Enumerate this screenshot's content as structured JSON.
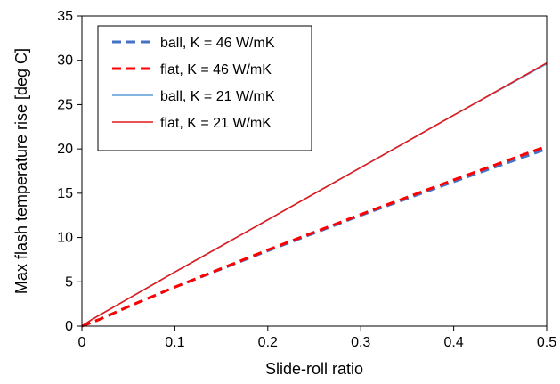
{
  "chart_data": {
    "type": "line",
    "xlabel": "Slide-roll ratio",
    "ylabel": "Max flash temperature rise [deg C]",
    "xlim": [
      0,
      0.5
    ],
    "ylim": [
      0,
      35
    ],
    "xticks": [
      "0",
      "0.1",
      "0.2",
      "0.3",
      "0.4",
      "0.5"
    ],
    "yticks": [
      "0",
      "5",
      "10",
      "15",
      "20",
      "25",
      "30",
      "35"
    ],
    "grid": false,
    "legend_position": "top-left",
    "series": [
      {
        "name": "ball, K = 46 W/mK",
        "color": "#4472C4",
        "style": "dashed",
        "x": [
          0,
          0.005,
          0.01,
          0.02,
          0.05,
          0.1,
          0.2,
          0.3,
          0.4,
          0.5
        ],
        "y": [
          0,
          0.2,
          0.4,
          0.8,
          2.2,
          4.4,
          8.5,
          12.5,
          16.3,
          20.0
        ]
      },
      {
        "name": "flat, K = 46 W/mK",
        "color": "#FF0000",
        "style": "dashed",
        "x": [
          0,
          0.005,
          0.01,
          0.02,
          0.05,
          0.1,
          0.2,
          0.3,
          0.4,
          0.5
        ],
        "y": [
          0,
          0.2,
          0.4,
          0.8,
          2.2,
          4.4,
          8.6,
          12.6,
          16.5,
          20.3
        ]
      },
      {
        "name": "ball, K = 21 W/mK",
        "color": "#5B9BD5",
        "style": "solid",
        "x": [
          0,
          0.01,
          0.02,
          0.05,
          0.1,
          0.2,
          0.3,
          0.4,
          0.5
        ],
        "y": [
          0,
          0.7,
          1.3,
          3.1,
          6.1,
          12.0,
          17.9,
          23.8,
          29.6
        ]
      },
      {
        "name": "flat, K = 21 W/mK",
        "color": "#E31A1C",
        "style": "solid",
        "x": [
          0,
          0.01,
          0.02,
          0.05,
          0.1,
          0.2,
          0.3,
          0.4,
          0.5
        ],
        "y": [
          0,
          0.7,
          1.3,
          3.1,
          6.1,
          12.0,
          17.9,
          23.8,
          29.7
        ]
      }
    ]
  }
}
